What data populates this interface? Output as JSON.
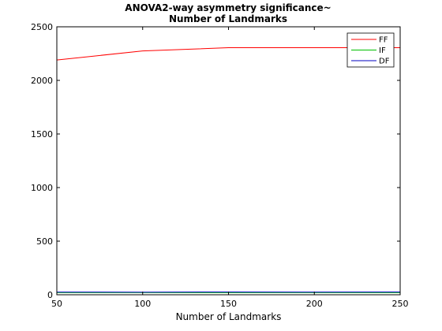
{
  "chart_data": {
    "type": "line",
    "title_lines": [
      "ANOVA2-way asymmetry significance~",
      "Number of Landmarks"
    ],
    "xlabel": "Number of Landmarks",
    "ylabel": "",
    "x": [
      50,
      100,
      150,
      200,
      250
    ],
    "xlim": [
      50,
      250
    ],
    "ylim": [
      0,
      2500
    ],
    "xticks": [
      50,
      100,
      150,
      200,
      250
    ],
    "yticks": [
      0,
      500,
      1000,
      1500,
      2000,
      2500
    ],
    "grid": false,
    "legend_position": "top-right",
    "series": [
      {
        "name": "FF",
        "color": "#ff0000",
        "values": [
          2190,
          2275,
          2305,
          2305,
          2305
        ]
      },
      {
        "name": "IF",
        "color": "#00c000",
        "values": [
          20,
          20,
          20,
          20,
          20
        ]
      },
      {
        "name": "DF",
        "color": "#0000c0",
        "values": [
          25,
          24,
          26,
          25,
          26
        ]
      }
    ]
  }
}
